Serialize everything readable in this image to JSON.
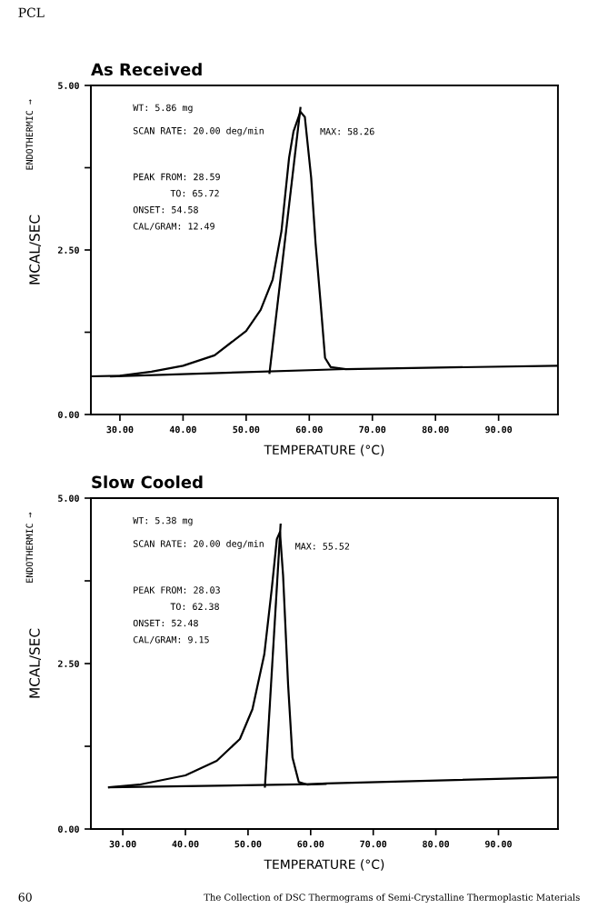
{
  "chart_data": [
    {
      "type": "line",
      "title": "As Received",
      "xlabel": "TEMPERATURE (°C)",
      "ylabel": "MCAL/SEC",
      "annotations": [
        "PCL",
        "ENDOTHERMIC →",
        "WT: 5.86 mg",
        "SCAN RATE: 20.00 deg/min",
        "PEAK FROM: 28.59",
        "TO: 65.72",
        "ONSET: 54.58",
        "CAL/GRAM: 12.49",
        {
          "text": "MAX: 58.26",
          "x": 59.3,
          "y": 4.52
        }
      ],
      "series": [
        {
          "color": "#000000",
          "x": [
            25.4,
            30,
            35,
            40,
            45,
            50,
            52.3,
            54.2,
            55.6,
            56.8,
            57.5,
            58.6,
            59.3,
            60.3,
            61.0,
            61.8,
            62.5,
            63.4,
            65.8,
            78.3,
            99.4
          ],
          "values": [
            0.58,
            0.59,
            0.65,
            0.74,
            0.9,
            1.27,
            1.59,
            2.05,
            2.79,
            3.9,
            4.3,
            4.6,
            4.52,
            3.6,
            2.6,
            1.69,
            0.86,
            0.72,
            0.69,
            0.71,
            0.74
          ]
        },
        {
          "color": "#000000",
          "x": [
            28.6,
            65.7
          ],
          "values": [
            0.58,
            0.69
          ]
        },
        {
          "color": "#000000",
          "x": [
            53.7,
            58.6
          ],
          "values": [
            0.63,
            4.66
          ]
        }
      ],
      "xlim": [
        25.4,
        99.4
      ],
      "ylim": [
        0,
        5
      ],
      "xticks": [
        {
          "value": 30,
          "label": "30.00"
        },
        {
          "value": 40,
          "label": "40.00"
        },
        {
          "value": 50,
          "label": "50.00"
        },
        {
          "value": 60,
          "label": "60.00"
        },
        {
          "value": 70,
          "label": "70.00"
        },
        {
          "value": 80,
          "label": "80.00"
        },
        {
          "value": 90,
          "label": "90.00"
        }
      ],
      "yticks": [
        {
          "value": 0,
          "label": "0.00"
        },
        {
          "value": 1.25,
          "label": null
        },
        {
          "value": 2.5,
          "label": "2.50"
        },
        {
          "value": 3.75,
          "label": null
        },
        {
          "value": 5,
          "label": "5.00"
        }
      ],
      "grid": false,
      "marker": "none",
      "line_style": "solid"
    },
    {
      "type": "line",
      "title": "Slow Cooled",
      "xlabel": "TEMPERATURE (°C)",
      "ylabel": "MCAL/SEC",
      "annotations": [
        "ENDOTHERMIC →",
        "WT: 5.38 mg",
        "SCAN RATE: 20.00 deg/min",
        "PEAK FROM: 28.03",
        "TO: 62.38",
        "ONSET: 52.48",
        "CAL/GRAM: 9.15",
        "60",
        "The Collection of DSC Thermograms of Semi-Crystalline Thermoplastic Materials",
        {
          "text": "MAX: 55.52",
          "x": 55.1,
          "y": 4.49
        }
      ],
      "series": [
        {
          "color": "#000000",
          "x": [
            27.8,
            32.6,
            40,
            45,
            48.7,
            50.7,
            52.6,
            53.8,
            54.6,
            55.1,
            55.6,
            56.4,
            57.1,
            58.1,
            59.5,
            62.4,
            99.5
          ],
          "values": [
            0.63,
            0.67,
            0.81,
            1.03,
            1.36,
            1.81,
            2.64,
            3.64,
            4.38,
            4.49,
            3.83,
            2.18,
            1.08,
            0.71,
            0.67,
            0.69,
            0.78
          ]
        },
        {
          "color": "#000000",
          "x": [
            27.8,
            62.4
          ],
          "values": [
            0.63,
            0.68
          ]
        },
        {
          "color": "#000000",
          "x": [
            52.7,
            55.2
          ],
          "values": [
            0.64,
            4.6
          ]
        }
      ],
      "xlim": [
        24.9,
        99.5
      ],
      "ylim": [
        0,
        5
      ],
      "xticks": [
        {
          "value": 30,
          "label": "30.00"
        },
        {
          "value": 40,
          "label": "40.00"
        },
        {
          "value": 50,
          "label": "50.00"
        },
        {
          "value": 60,
          "label": "60.00"
        },
        {
          "value": 70,
          "label": "70.00"
        },
        {
          "value": 80,
          "label": "80.00"
        },
        {
          "value": 90,
          "label": "90.00"
        }
      ],
      "yticks": [
        {
          "value": 0,
          "label": "0.00"
        },
        {
          "value": 1.25,
          "label": null
        },
        {
          "value": 2.5,
          "label": "2.50"
        },
        {
          "value": 3.75,
          "label": null
        },
        {
          "value": 5,
          "label": "5.00"
        }
      ],
      "grid": false,
      "marker": "none",
      "line_style": "solid"
    }
  ]
}
